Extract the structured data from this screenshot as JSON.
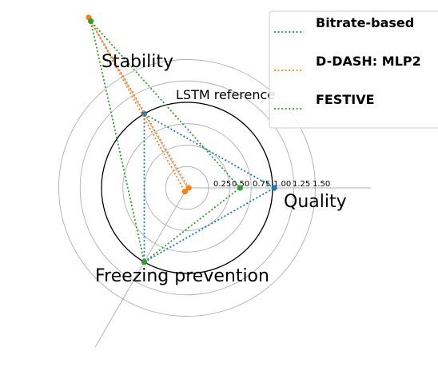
{
  "chart_data": {
    "type": "radar",
    "axes": [
      "Quality",
      "Stability",
      "Freezing prevention"
    ],
    "radial_ticks": [
      "0.25",
      "0.50",
      "0.75",
      "1.00",
      "1.25",
      "1.50"
    ],
    "radial_tick_values": [
      0.25,
      0.5,
      0.75,
      1.0,
      1.25,
      1.5
    ],
    "reference": {
      "label": "LSTM reference",
      "value": 1.0,
      "color": "#000000"
    },
    "series": [
      {
        "name": "Bitrate-based",
        "color": "#1f77b4",
        "values": [
          1.02,
          1.0,
          1.0
        ]
      },
      {
        "name": "D-DASH: MLP2",
        "color": "#ff7f0e",
        "values": [
          0.02,
          2.3,
          0.05
        ]
      },
      {
        "name": "FESTIVE",
        "color": "#2ca02c",
        "values": [
          0.62,
          2.25,
          1.0
        ]
      }
    ],
    "legend_position": "top-right",
    "grid": true
  }
}
